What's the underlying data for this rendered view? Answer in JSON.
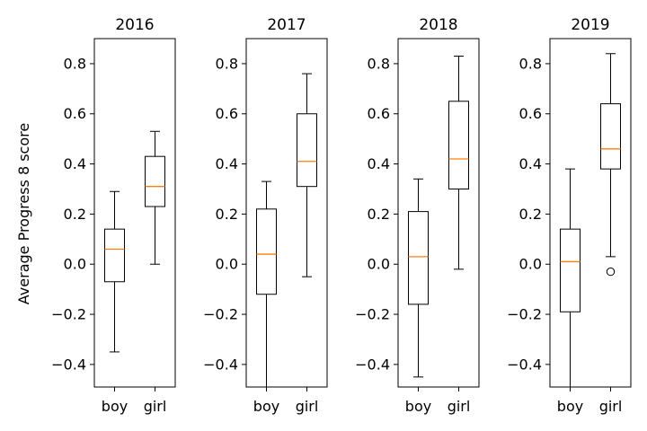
{
  "chart_data": {
    "type": "boxplot",
    "ylabel": "Average Progress 8 score",
    "ylim": [
      -0.49,
      0.9
    ],
    "yticks": [
      -0.4,
      -0.2,
      0.0,
      0.2,
      0.4,
      0.6,
      0.8
    ],
    "ytick_labels": [
      "−0.4",
      "−0.2",
      "0.0",
      "0.2",
      "0.4",
      "0.6",
      "0.8"
    ],
    "categories": [
      "boy",
      "girl"
    ],
    "grid": false,
    "colors": {
      "box": "#000000",
      "median": "#ff7f0e",
      "background": "#ffffff"
    },
    "panels": [
      {
        "title": "2016",
        "boxes": [
          {
            "category": "boy",
            "whisker_low": -0.35,
            "q1": -0.07,
            "median": 0.06,
            "q3": 0.14,
            "whisker_high": 0.29,
            "outliers": []
          },
          {
            "category": "girl",
            "whisker_low": 0.0,
            "q1": 0.23,
            "median": 0.31,
            "q3": 0.43,
            "whisker_high": 0.53,
            "outliers": []
          }
        ]
      },
      {
        "title": "2017",
        "boxes": [
          {
            "category": "boy",
            "whisker_low": -0.49,
            "q1": -0.12,
            "median": 0.04,
            "q3": 0.22,
            "whisker_high": 0.33,
            "outliers": []
          },
          {
            "category": "girl",
            "whisker_low": -0.05,
            "q1": 0.31,
            "median": 0.41,
            "q3": 0.6,
            "whisker_high": 0.76,
            "outliers": []
          }
        ]
      },
      {
        "title": "2018",
        "boxes": [
          {
            "category": "boy",
            "whisker_low": -0.45,
            "q1": -0.16,
            "median": 0.03,
            "q3": 0.21,
            "whisker_high": 0.34,
            "outliers": []
          },
          {
            "category": "girl",
            "whisker_low": -0.02,
            "q1": 0.3,
            "median": 0.42,
            "q3": 0.65,
            "whisker_high": 0.83,
            "outliers": []
          }
        ]
      },
      {
        "title": "2019",
        "boxes": [
          {
            "category": "boy",
            "whisker_low": -0.49,
            "q1": -0.19,
            "median": 0.01,
            "q3": 0.14,
            "whisker_high": 0.38,
            "outliers": []
          },
          {
            "category": "girl",
            "whisker_low": 0.03,
            "q1": 0.38,
            "median": 0.46,
            "q3": 0.64,
            "whisker_high": 0.84,
            "outliers": [
              -0.03
            ]
          }
        ]
      }
    ]
  }
}
